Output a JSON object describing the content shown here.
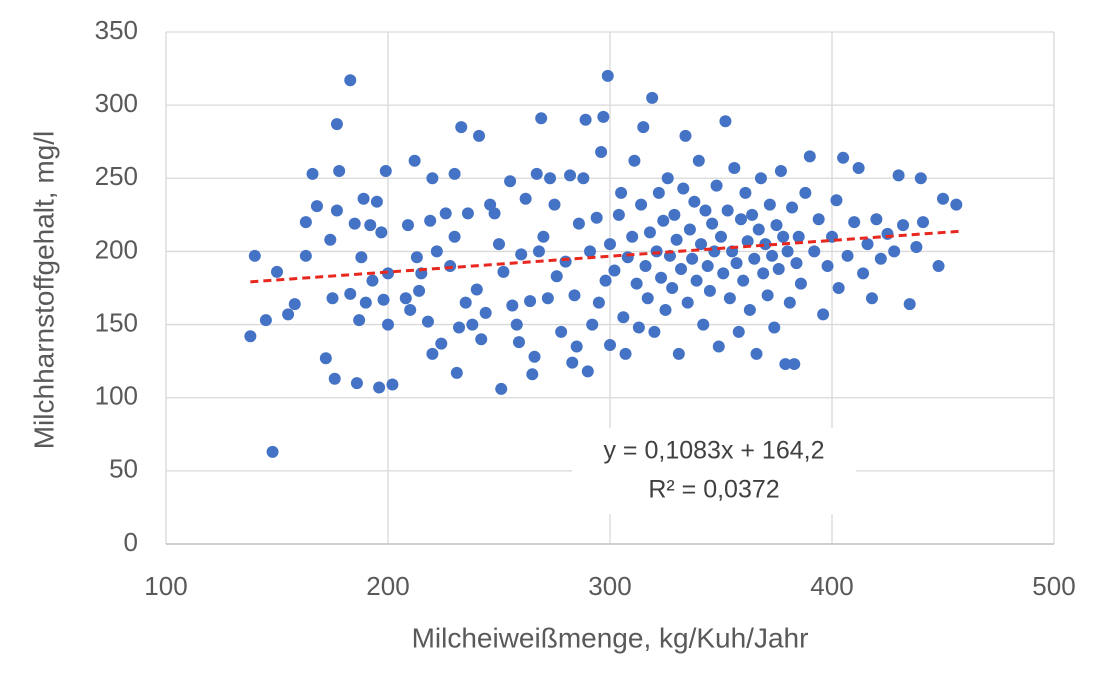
{
  "chart_data": {
    "type": "scatter",
    "x_label": "Milcheiweißmenge, kg/Kuh/Jahr",
    "y_label": "Milchharnstoffgehalt, mg/l",
    "xlim": [
      100,
      500
    ],
    "xticks": [
      100,
      200,
      300,
      400,
      500
    ],
    "ylim": [
      0,
      350
    ],
    "yticks": [
      0,
      50,
      100,
      150,
      200,
      250,
      300,
      350
    ],
    "grid": true,
    "color": "#4472c4",
    "x": [
      138,
      140,
      145,
      148,
      150,
      155,
      158,
      163,
      163,
      166,
      168,
      172,
      174,
      175,
      176,
      177,
      177,
      178,
      183,
      183,
      185,
      186,
      187,
      188,
      189,
      190,
      192,
      193,
      195,
      196,
      197,
      198,
      199,
      200,
      200,
      202,
      208,
      209,
      210,
      212,
      213,
      214,
      215,
      218,
      219,
      220,
      220,
      222,
      224,
      226,
      228,
      230,
      230,
      231,
      232,
      233,
      235,
      236,
      238,
      240,
      241,
      242,
      244,
      246,
      248,
      250,
      251,
      252,
      255,
      256,
      258,
      259,
      260,
      262,
      264,
      265,
      266,
      267,
      268,
      269,
      270,
      272,
      273,
      275,
      276,
      278,
      280,
      282,
      283,
      284,
      285,
      286,
      288,
      289,
      290,
      291,
      292,
      294,
      295,
      296,
      297,
      298,
      299,
      300,
      300,
      302,
      304,
      305,
      306,
      307,
      308,
      310,
      311,
      312,
      313,
      314,
      315,
      316,
      317,
      318,
      319,
      320,
      321,
      322,
      323,
      324,
      325,
      326,
      327,
      328,
      329,
      330,
      331,
      332,
      333,
      334,
      335,
      336,
      337,
      338,
      339,
      340,
      341,
      342,
      343,
      344,
      345,
      346,
      347,
      348,
      349,
      350,
      351,
      352,
      353,
      354,
      355,
      356,
      357,
      358,
      359,
      360,
      361,
      362,
      363,
      364,
      365,
      366,
      367,
      368,
      369,
      370,
      371,
      372,
      373,
      374,
      375,
      376,
      377,
      378,
      379,
      380,
      381,
      382,
      383,
      384,
      385,
      386,
      388,
      390,
      392,
      394,
      396,
      398,
      400,
      402,
      403,
      405,
      407,
      410,
      412,
      414,
      416,
      418,
      420,
      422,
      425,
      428,
      430,
      432,
      435,
      438,
      440,
      441,
      448,
      450,
      456
    ],
    "values": [
      142,
      197,
      153,
      63,
      186,
      157,
      164,
      197,
      220,
      253,
      231,
      127,
      208,
      168,
      113,
      228,
      287,
      255,
      317,
      171,
      219,
      110,
      153,
      196,
      236,
      165,
      218,
      180,
      234,
      107,
      213,
      167,
      255,
      150,
      185,
      109,
      168,
      218,
      160,
      262,
      196,
      173,
      185,
      152,
      221,
      250,
      130,
      200,
      137,
      226,
      190,
      210,
      253,
      117,
      148,
      285,
      165,
      226,
      150,
      174,
      279,
      140,
      158,
      232,
      226,
      205,
      106,
      186,
      248,
      163,
      150,
      138,
      198,
      236,
      166,
      116,
      128,
      253,
      200,
      291,
      210,
      168,
      250,
      232,
      183,
      145,
      193,
      252,
      124,
      170,
      135,
      219,
      250,
      290,
      118,
      200,
      150,
      223,
      165,
      268,
      292,
      180,
      320,
      205,
      136,
      187,
      225,
      240,
      155,
      130,
      196,
      210,
      262,
      178,
      148,
      232,
      285,
      190,
      168,
      213,
      305,
      145,
      200,
      240,
      182,
      221,
      160,
      250,
      197,
      175,
      225,
      208,
      130,
      188,
      243,
      279,
      165,
      215,
      195,
      234,
      180,
      262,
      205,
      150,
      228,
      190,
      173,
      219,
      200,
      245,
      135,
      210,
      185,
      289,
      228,
      168,
      200,
      257,
      192,
      145,
      222,
      180,
      240,
      207,
      160,
      225,
      195,
      130,
      215,
      250,
      185,
      205,
      170,
      232,
      197,
      148,
      218,
      188,
      255,
      210,
      123,
      200,
      165,
      230,
      123,
      192,
      210,
      178,
      240,
      265,
      200,
      222,
      157,
      190,
      210,
      235,
      175,
      264,
      197,
      220,
      257,
      185,
      205,
      168,
      222,
      195,
      212,
      200,
      252,
      218,
      164,
      203,
      250,
      220,
      190,
      236,
      232
    ],
    "trendline": {
      "x": [
        138,
        457
      ],
      "values": [
        179.2,
        213.7
      ],
      "color": "#e8271f"
    },
    "annotation": [
      "y = 0,1083x + 164,2",
      "R² = 0,0372"
    ]
  }
}
